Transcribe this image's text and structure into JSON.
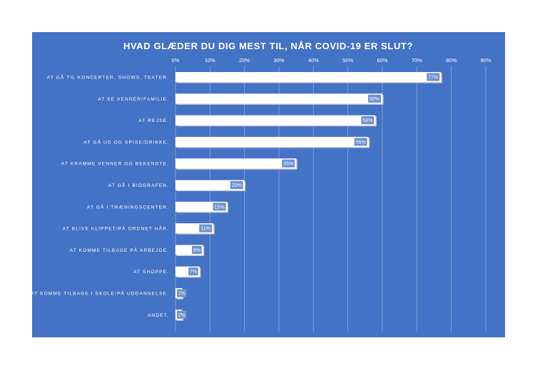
{
  "chart_data": {
    "type": "bar",
    "orientation": "horizontal",
    "title": "HVAD GLÆDER DU DIG MEST TIL, NÅR COVID-19 ER SLUT?",
    "categories": [
      "AT GÅ TIL KONCERTER, SHOWS, TEATER.",
      "AT SE VENNER/FAMILIE.",
      "AT REJSE.",
      "AT GÅ UD OG SPISE/DRIKKE.",
      "AT KRAMME VENNER OG BEKENDTE.",
      "AT GÅ I BIOGRAFEN.",
      "AT GÅ I TRÆNINGSCENTER.",
      "AT BLIVE KLIPPET/PÅ ORDNET HÅR.",
      "AT KOMME TILBAGE PÅ ARBEJDE.",
      "AT SHOPPE.",
      "AT KOMME TILBAGE I SKOLE/PÅ UDDANNELSE.",
      "ANDET."
    ],
    "values": [
      77,
      60,
      58,
      56,
      35,
      20,
      15,
      11,
      8,
      7,
      2,
      2
    ],
    "data_labels": [
      "77%",
      "60%",
      "58%",
      "56%",
      "35%",
      "20%",
      "15%",
      "11%",
      "8%",
      "7%",
      "2%",
      "2%"
    ],
    "x_ticks": [
      "0%",
      "10%",
      "20%",
      "30%",
      "40%",
      "50%",
      "60%",
      "70%",
      "80%",
      "90%"
    ],
    "xlim": [
      0,
      90
    ],
    "x_axis_position": "top",
    "grid": true,
    "legend": "none",
    "colors": {
      "background": "#4472c4",
      "bar": "#ffffff",
      "label_background": "#6b8fd3",
      "text": "#ffffff",
      "gridline": "#8fa9dc"
    }
  }
}
